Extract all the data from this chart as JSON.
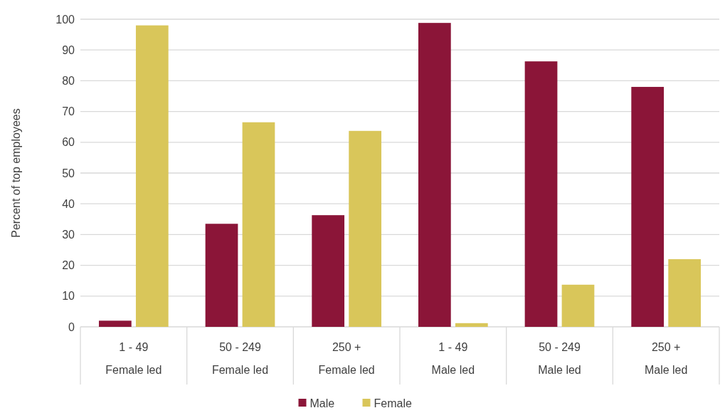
{
  "chart_data": {
    "type": "bar",
    "ylabel": "Percent of top employees",
    "categories": [
      "1 - 49\nFemale led",
      "50 - 249\nFemale led",
      "250 +\nFemale led",
      "1 - 49\nMale led",
      "50 - 249\nMale led",
      "250 +\nMale led"
    ],
    "series": [
      {
        "name": "Male",
        "color": "#8b1538",
        "values": [
          2,
          33.5,
          36.3,
          98.8,
          86.3,
          78
        ]
      },
      {
        "name": "Female",
        "color": "#d9c65a",
        "values": [
          98,
          66.5,
          63.7,
          1.2,
          13.7,
          22
        ]
      }
    ],
    "ylim": [
      0,
      100
    ],
    "yticks": [
      0,
      10,
      20,
      30,
      40,
      50,
      60,
      70,
      80,
      90,
      100
    ],
    "grid": "y",
    "legend": "bottom"
  }
}
